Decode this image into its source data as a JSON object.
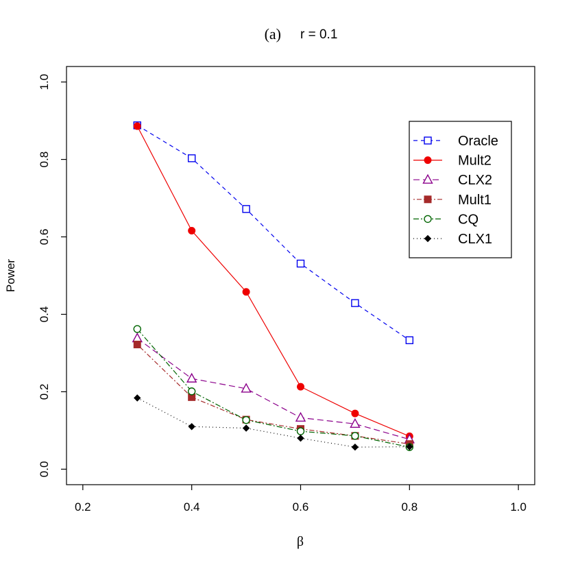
{
  "chart_data": {
    "type": "line",
    "title_panel": "(a)",
    "title_param": "r = 0.1",
    "xlabel": "β",
    "ylabel": "Power",
    "xlim": [
      0.17,
      1.03
    ],
    "ylim": [
      -0.04,
      1.04
    ],
    "xticks": [
      0.2,
      0.4,
      0.6,
      0.8,
      1.0
    ],
    "xtick_labels": [
      "0.2",
      "0.4",
      "0.6",
      "0.8",
      "1.0"
    ],
    "yticks": [
      0.0,
      0.2,
      0.4,
      0.6,
      0.8,
      1.0
    ],
    "ytick_labels": [
      "0.0",
      "0.2",
      "0.4",
      "0.6",
      "0.8",
      "1.0"
    ],
    "grid": false,
    "legend_position": "top-right",
    "x": [
      0.3,
      0.4,
      0.5,
      0.6,
      0.7,
      0.8
    ],
    "series": [
      {
        "name": "Oracle",
        "values": [
          0.888,
          0.803,
          0.672,
          0.531,
          0.429,
          0.333
        ],
        "color": "#0000ee",
        "dash": "6,5",
        "marker": "open-square"
      },
      {
        "name": "Mult2",
        "values": [
          0.886,
          0.616,
          0.458,
          0.213,
          0.144,
          0.085
        ],
        "color": "#ee0000",
        "dash": "",
        "marker": "filled-circle"
      },
      {
        "name": "CLX2",
        "values": [
          0.338,
          0.234,
          0.208,
          0.133,
          0.117,
          0.077
        ],
        "color": "#8b008b",
        "dash": "9,5",
        "marker": "open-triangle"
      },
      {
        "name": "Mult1",
        "values": [
          0.322,
          0.186,
          0.128,
          0.104,
          0.086,
          0.065
        ],
        "color": "#a52a2a",
        "dash": "2,3,7,3",
        "marker": "filled-square"
      },
      {
        "name": "CQ",
        "values": [
          0.362,
          0.201,
          0.127,
          0.098,
          0.086,
          0.057
        ],
        "color": "#006400",
        "dash": "8,3,2,3",
        "marker": "open-circle"
      },
      {
        "name": "CLX1",
        "values": [
          0.184,
          0.11,
          0.106,
          0.08,
          0.057,
          0.058
        ],
        "color": "#000000",
        "dash": "1,4",
        "marker": "filled-diamond"
      }
    ]
  }
}
